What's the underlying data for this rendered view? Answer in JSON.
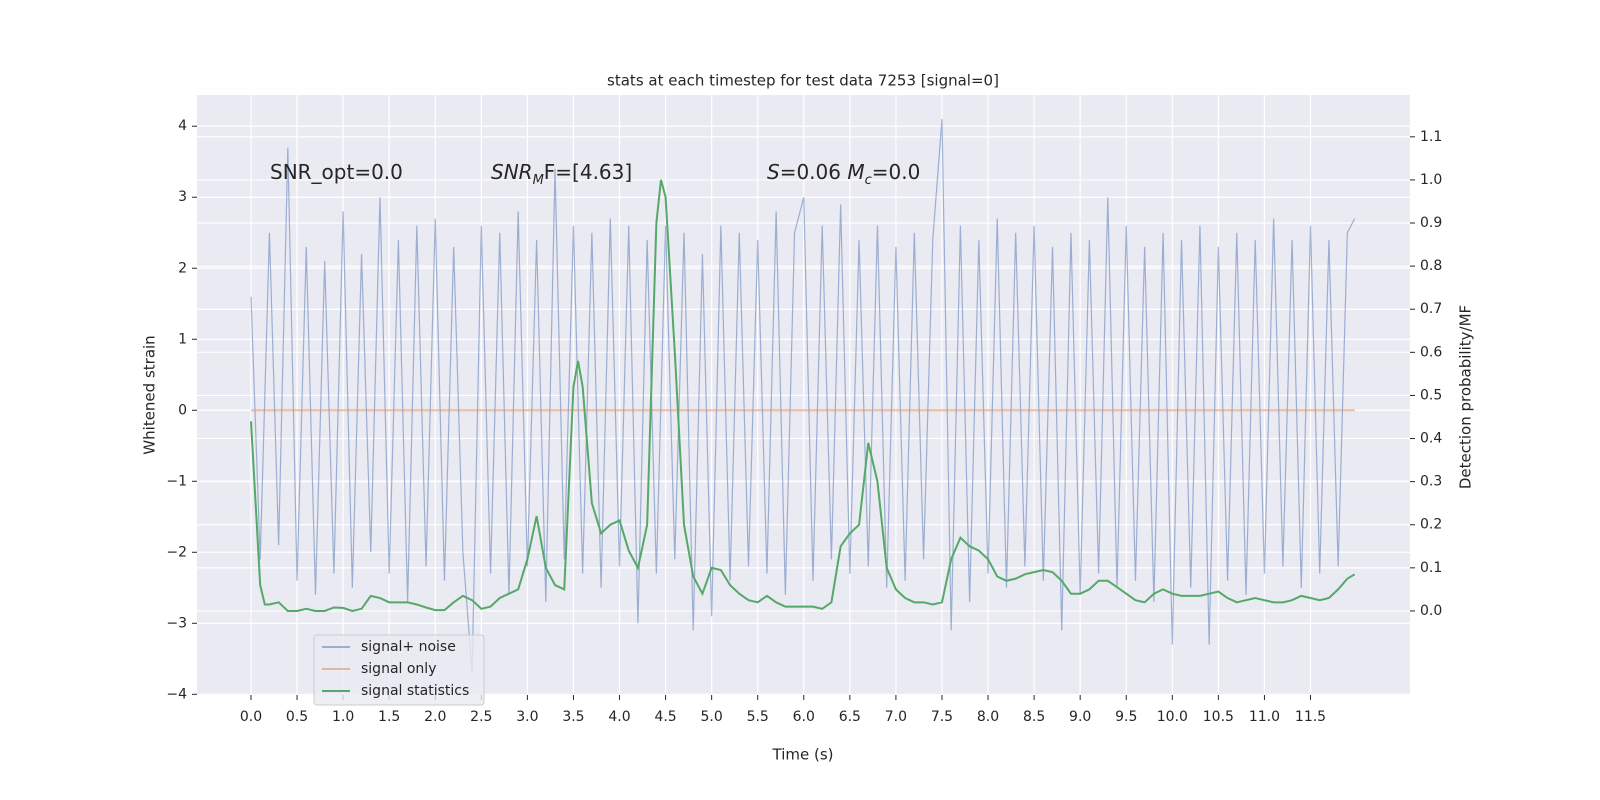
{
  "chart_data": {
    "type": "line",
    "title": "stats at each timestep for test data 7253 [signal=0]",
    "xlabel": "Time (s)",
    "ylabel": "Whitened strain",
    "y2label": "Detection probability/MF",
    "grid": true,
    "legend": "lower left",
    "xlim": [
      -0.586,
      12.58
    ],
    "ylim": [
      -4.01,
      4.44
    ],
    "y2lim": [
      -0.195,
      1.197
    ],
    "xticks": [
      {
        "value": 0,
        "label": "0.0"
      },
      0.5,
      {
        "value": 1,
        "label": "1.0"
      },
      1.5,
      {
        "value": 2,
        "label": "2.0"
      },
      2.5,
      {
        "value": 3,
        "label": "3.0"
      },
      3.5,
      {
        "value": 4,
        "label": "4.0"
      },
      4.5,
      {
        "value": 5,
        "label": "5.0"
      },
      5.5,
      {
        "value": 6,
        "label": "6.0"
      },
      6.5,
      {
        "value": 7,
        "label": "7.0"
      },
      7.5,
      {
        "value": 8,
        "label": "8.0"
      },
      8.5,
      {
        "value": 9,
        "label": "9.0"
      },
      9.5,
      {
        "value": 10,
        "label": "10.0"
      },
      10.5,
      {
        "value": 11,
        "label": "11.0"
      },
      11.5
    ],
    "yticks": [
      {
        "value": -4,
        "label": "−4"
      },
      {
        "value": -3,
        "label": "−3"
      },
      {
        "value": -2,
        "label": "−2"
      },
      {
        "value": -1,
        "label": "−1"
      },
      0,
      1,
      2,
      3,
      4
    ],
    "y2ticks": [
      {
        "value": 0,
        "label": "0.0"
      },
      0.1,
      0.2,
      0.3,
      0.4,
      0.5,
      0.6,
      0.7,
      0.8,
      0.9,
      {
        "value": 1,
        "label": "1.0"
      },
      1.1
    ],
    "annotations": [
      {
        "segments": [
          {
            "text": "SNR_opt=0.0"
          }
        ]
      },
      {
        "segments": [
          {
            "text": "SNR",
            "italic": true
          },
          {
            "text": "M",
            "italic": true,
            "sub": true
          },
          {
            "text": "F=[4.63]"
          }
        ]
      },
      {
        "segments": [
          {
            "text": "S",
            "italic": true
          },
          {
            "text": "=0.06   "
          },
          {
            "text": "M",
            "italic": true
          },
          {
            "text": "c",
            "italic": true,
            "sub": true
          },
          {
            "text": "=0.0"
          }
        ]
      }
    ],
    "series": [
      {
        "name": "signal+ noise",
        "color": "#4c72b0",
        "opacity": 0.5,
        "x": [
          0,
          0.1,
          0.2,
          0.3,
          0.4,
          0.5,
          0.6,
          0.7,
          0.8,
          0.9,
          1,
          1.1,
          1.2,
          1.3,
          1.4,
          1.5,
          1.6,
          1.7,
          1.8,
          1.9,
          2,
          2.1,
          2.2,
          2.3,
          2.4,
          2.5,
          2.6,
          2.7,
          2.8,
          2.9,
          3,
          3.1,
          3.2,
          3.3,
          3.4,
          3.5,
          3.6,
          3.7,
          3.8,
          3.9,
          4,
          4.1,
          4.2,
          4.3,
          4.4,
          4.5,
          4.6,
          4.7,
          4.8,
          4.9,
          5,
          5.1,
          5.2,
          5.3,
          5.4,
          5.5,
          5.6,
          5.7,
          5.8,
          5.9,
          6,
          6.1,
          6.2,
          6.3,
          6.4,
          6.5,
          6.6,
          6.7,
          6.8,
          6.9,
          7,
          7.1,
          7.2,
          7.3,
          7.4,
          7.5,
          7.6,
          7.7,
          7.8,
          7.9,
          8,
          8.1,
          8.2,
          8.3,
          8.4,
          8.5,
          8.6,
          8.7,
          8.8,
          8.9,
          9,
          9.1,
          9.2,
          9.3,
          9.4,
          9.5,
          9.6,
          9.7,
          9.8,
          9.9,
          10,
          10.1,
          10.2,
          10.3,
          10.4,
          10.5,
          10.6,
          10.7,
          10.8,
          10.9,
          11,
          11.1,
          11.2,
          11.3,
          11.4,
          11.5,
          11.6,
          11.7,
          11.8,
          11.9,
          11.98
        ],
        "values": [
          1.6,
          -2.1,
          2.5,
          -1.9,
          3.7,
          -2.4,
          2.3,
          -2.6,
          2.1,
          -2.3,
          2.8,
          -2.5,
          2.2,
          -2.0,
          3.0,
          -2.3,
          2.4,
          -2.7,
          2.6,
          -2.2,
          2.7,
          -2.4,
          2.3,
          -2.0,
          -3.7,
          2.6,
          -2.3,
          2.5,
          -2.6,
          2.8,
          -2.2,
          2.4,
          -2.7,
          3.4,
          -2.1,
          2.6,
          -2.3,
          2.5,
          -2.5,
          2.7,
          -2.2,
          2.6,
          -3.0,
          2.4,
          -2.3,
          2.6,
          -2.1,
          2.5,
          -3.1,
          2.2,
          -2.9,
          2.6,
          -2.4,
          2.5,
          -2.2,
          2.4,
          -2.3,
          2.8,
          -2.6,
          2.5,
          3.0,
          -2.4,
          2.6,
          -2.1,
          2.9,
          -2.3,
          2.4,
          -2.2,
          2.6,
          -2.5,
          2.3,
          -2.4,
          2.5,
          -2.1,
          2.4,
          4.1,
          -3.1,
          2.6,
          -2.7,
          2.4,
          -2.3,
          2.7,
          -2.5,
          2.5,
          -2.2,
          2.6,
          -2.4,
          2.3,
          -3.1,
          2.5,
          -2.6,
          2.4,
          -2.3,
          3.0,
          -2.5,
          2.6,
          -2.4,
          2.3,
          -2.7,
          2.5,
          -3.3,
          2.4,
          -2.5,
          2.6,
          -3.3,
          2.3,
          -2.4,
          2.5,
          -2.6,
          2.4,
          -2.3,
          2.7,
          -2.2,
          2.4,
          -2.5,
          2.6,
          -2.3,
          2.4,
          -2.2,
          2.5,
          2.7
        ]
      },
      {
        "name": "signal only",
        "color": "#dd8452",
        "opacity": 0.5,
        "x": [
          0,
          11.98
        ],
        "values": [
          0,
          0
        ]
      },
      {
        "name": "signal statistics",
        "color": "#55a868",
        "opacity": 1,
        "axis": "y2",
        "x": [
          0,
          0.1,
          0.15,
          0.2,
          0.3,
          0.4,
          0.5,
          0.6,
          0.7,
          0.8,
          0.9,
          1,
          1.1,
          1.2,
          1.3,
          1.4,
          1.5,
          1.6,
          1.7,
          1.8,
          1.9,
          2,
          2.1,
          2.2,
          2.3,
          2.4,
          2.5,
          2.6,
          2.7,
          2.8,
          2.9,
          3,
          3.1,
          3.2,
          3.3,
          3.4,
          3.5,
          3.55,
          3.6,
          3.7,
          3.8,
          3.9,
          4,
          4.1,
          4.2,
          4.3,
          4.4,
          4.45,
          4.5,
          4.6,
          4.7,
          4.8,
          4.9,
          5,
          5.1,
          5.2,
          5.3,
          5.4,
          5.5,
          5.6,
          5.7,
          5.8,
          5.9,
          6,
          6.1,
          6.2,
          6.3,
          6.4,
          6.5,
          6.6,
          6.7,
          6.8,
          6.9,
          7,
          7.1,
          7.2,
          7.3,
          7.4,
          7.5,
          7.6,
          7.7,
          7.8,
          7.9,
          8,
          8.1,
          8.2,
          8.3,
          8.4,
          8.5,
          8.6,
          8.7,
          8.8,
          8.9,
          9,
          9.1,
          9.2,
          9.3,
          9.4,
          9.5,
          9.6,
          9.7,
          9.8,
          9.9,
          10,
          10.1,
          10.2,
          10.3,
          10.4,
          10.5,
          10.6,
          10.7,
          10.8,
          10.9,
          11,
          11.1,
          11.2,
          11.3,
          11.4,
          11.5,
          11.6,
          11.7,
          11.8,
          11.9,
          11.98
        ],
        "values": [
          0.44,
          0.06,
          0.015,
          0.015,
          0.02,
          0.0,
          0.0,
          0.005,
          0.0,
          0.0,
          0.008,
          0.007,
          0.0,
          0.005,
          0.035,
          0.03,
          0.02,
          0.02,
          0.02,
          0.015,
          0.008,
          0.002,
          0.002,
          0.02,
          0.035,
          0.025,
          0.005,
          0.01,
          0.03,
          0.04,
          0.05,
          0.12,
          0.22,
          0.1,
          0.06,
          0.05,
          0.52,
          0.58,
          0.52,
          0.25,
          0.18,
          0.2,
          0.21,
          0.14,
          0.1,
          0.2,
          0.9,
          1.0,
          0.96,
          0.6,
          0.2,
          0.08,
          0.04,
          0.1,
          0.095,
          0.06,
          0.04,
          0.025,
          0.02,
          0.035,
          0.02,
          0.01,
          0.01,
          0.01,
          0.01,
          0.005,
          0.02,
          0.15,
          0.18,
          0.2,
          0.39,
          0.3,
          0.1,
          0.05,
          0.03,
          0.02,
          0.02,
          0.015,
          0.02,
          0.12,
          0.17,
          0.15,
          0.14,
          0.12,
          0.08,
          0.07,
          0.075,
          0.085,
          0.09,
          0.095,
          0.09,
          0.07,
          0.04,
          0.04,
          0.05,
          0.07,
          0.07,
          0.055,
          0.04,
          0.025,
          0.02,
          0.04,
          0.05,
          0.04,
          0.035,
          0.035,
          0.035,
          0.04,
          0.045,
          0.03,
          0.02,
          0.025,
          0.03,
          0.025,
          0.02,
          0.02,
          0.025,
          0.035,
          0.03,
          0.025,
          0.03,
          0.05,
          0.075,
          0.085
        ]
      }
    ]
  }
}
